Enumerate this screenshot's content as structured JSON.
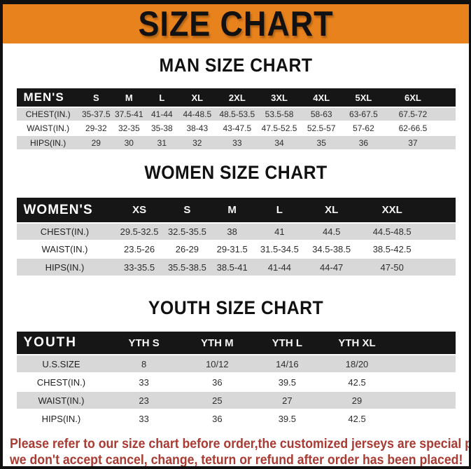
{
  "title": "SIZE CHART",
  "colors": {
    "banner_orange": "#e8821d",
    "table_header_black": "#161616",
    "row_gray": "#d8d8d8",
    "footer_red": "#a93b32",
    "frame_black": "#101010"
  },
  "sections": {
    "men": {
      "heading": "MAN SIZE CHART",
      "table": {
        "label": "MEN'S",
        "sizes": [
          "S",
          "M",
          "L",
          "XL",
          "2XL",
          "3XL",
          "4XL",
          "5XL",
          "6XL"
        ],
        "rows": [
          {
            "label": "CHEST(IN.)",
            "values": [
              "35-37.5",
              "37.5-41",
              "41-44",
              "44-48.5",
              "48.5-53.5",
              "53.5-58",
              "58-63",
              "63-67.5",
              "67.5-72"
            ]
          },
          {
            "label": "WAIST(IN.)",
            "values": [
              "29-32",
              "32-35",
              "35-38",
              "38-43",
              "43-47.5",
              "47.5-52.5",
              "52.5-57",
              "57-62",
              "62-66.5"
            ]
          },
          {
            "label": "HIPS(IN.)",
            "values": [
              "29",
              "30",
              "31",
              "32",
              "33",
              "34",
              "35",
              "36",
              "37"
            ]
          }
        ]
      }
    },
    "women": {
      "heading": "WOMEN SIZE CHART",
      "table": {
        "label": "WOMEN'S",
        "sizes": [
          "XS",
          "S",
          "M",
          "L",
          "XL",
          "XXL"
        ],
        "rows": [
          {
            "label": "CHEST(IN.)",
            "values": [
              "29.5-32.5",
              "32.5-35.5",
              "38",
              "41",
              "44.5",
              "44.5-48.5"
            ]
          },
          {
            "label": "WAIST(IN.)",
            "values": [
              "23.5-26",
              "26-29",
              "29-31.5",
              "31.5-34.5",
              "34.5-38.5",
              "38.5-42.5"
            ]
          },
          {
            "label": "HIPS(IN.)",
            "values": [
              "33-35.5",
              "35.5-38.5",
              "38.5-41",
              "41-44",
              "44-47",
              "47-50"
            ]
          }
        ]
      }
    },
    "youth": {
      "heading": "YOUTH SIZE CHART",
      "table": {
        "label": "YOUTH",
        "sizes": [
          "YTH S",
          "YTH M",
          "YTH L",
          "YTH XL"
        ],
        "rows": [
          {
            "label": "U.S.SIZE",
            "values": [
              "8",
              "10/12",
              "14/16",
              "18/20"
            ]
          },
          {
            "label": "CHEST(IN.)",
            "values": [
              "33",
              "36",
              "39.5",
              "42.5"
            ]
          },
          {
            "label": "WAIST(IN.)",
            "values": [
              "23",
              "25",
              "27",
              "29"
            ]
          },
          {
            "label": "HIPS(IN.)",
            "values": [
              "33",
              "36",
              "39.5",
              "42.5"
            ]
          }
        ]
      }
    }
  },
  "footer": {
    "line1": "Please refer to our size chart before order,the customized jerseys are special products,",
    "line2": "we don't accept cancel, change, teturn or refund after order has been placed!"
  }
}
